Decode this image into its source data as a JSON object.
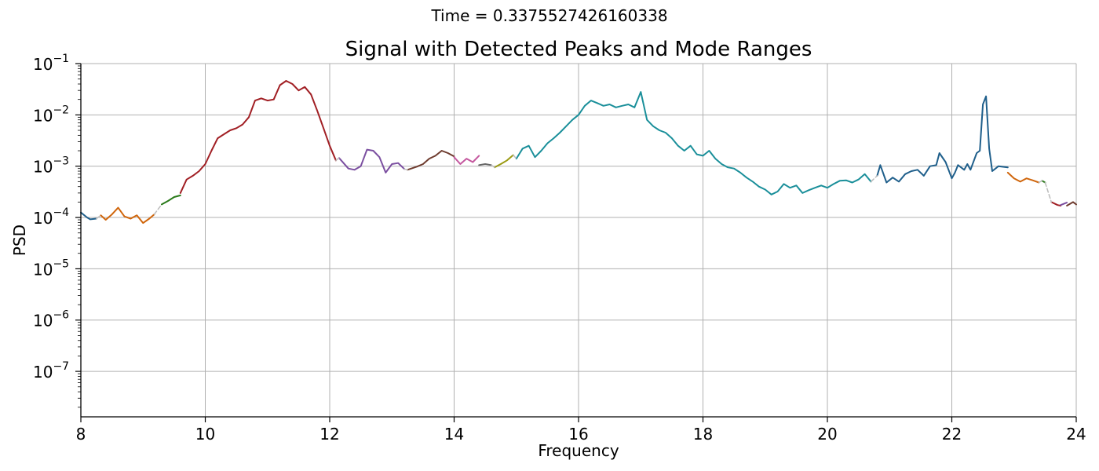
{
  "figure": {
    "suptitle": "Time = 0.3375527426160338"
  },
  "chart_data": {
    "type": "line",
    "title": "Signal with Detected Peaks and Mode Ranges",
    "xlabel": "Frequency",
    "ylabel": "PSD",
    "xlim": [
      8,
      24
    ],
    "ylim": [
      1.3e-08,
      0.1
    ],
    "yscale": "log",
    "grid": true,
    "x_ticks": [
      "8",
      "10",
      "12",
      "14",
      "16",
      "18",
      "20",
      "22",
      "24"
    ],
    "x_tick_values": [
      8,
      10,
      12,
      14,
      16,
      18,
      20,
      22,
      24
    ],
    "y_tick_values": [
      1e-07,
      1e-06,
      1e-05,
      0.0001,
      0.001,
      0.01,
      0.1
    ],
    "y_ticks": [
      {
        "base": "10",
        "exp": "−7"
      },
      {
        "base": "10",
        "exp": "−6"
      },
      {
        "base": "10",
        "exp": "−5"
      },
      {
        "base": "10",
        "exp": "−4"
      },
      {
        "base": "10",
        "exp": "−3"
      },
      {
        "base": "10",
        "exp": "−2"
      },
      {
        "base": "10",
        "exp": "−1"
      }
    ],
    "series": [
      {
        "color": "#1f5f8b",
        "dashed": false,
        "x": [
          8.0,
          8.1,
          8.15,
          8.25
        ],
        "y": [
          0.000125,
          0.0001,
          9.2e-05,
          9.5e-05
        ]
      },
      {
        "color": "#d0660c",
        "dashed": false,
        "x": [
          8.32,
          8.4,
          8.5,
          8.6,
          8.7,
          8.8,
          8.9,
          9.0,
          9.1,
          9.18
        ],
        "y": [
          0.00011,
          9e-05,
          0.000115,
          0.000155,
          0.000105,
          9.5e-05,
          0.00011,
          7.8e-05,
          9.5e-05,
          0.000115
        ]
      },
      {
        "color": "#2a7a1a",
        "dashed": false,
        "x": [
          9.3,
          9.4,
          9.5,
          9.6
        ],
        "y": [
          0.00018,
          0.00021,
          0.00025,
          0.00027
        ]
      },
      {
        "color": "#a11f24",
        "dashed": false,
        "x": [
          9.6,
          9.7,
          9.8,
          9.9,
          10.0,
          10.1,
          10.2,
          10.3,
          10.4,
          10.5,
          10.6,
          10.7,
          10.8,
          10.9,
          11.0,
          11.1,
          11.2,
          11.3,
          11.4,
          11.5,
          11.6,
          11.7,
          11.8,
          11.9,
          12.0,
          12.1
        ],
        "y": [
          0.0003,
          0.00055,
          0.00065,
          0.0008,
          0.0011,
          0.002,
          0.0035,
          0.0042,
          0.005,
          0.0055,
          0.0065,
          0.009,
          0.019,
          0.021,
          0.019,
          0.02,
          0.038,
          0.046,
          0.04,
          0.03,
          0.035,
          0.025,
          0.012,
          0.0055,
          0.0025,
          0.0013
        ]
      },
      {
        "color": "#7b4fa0",
        "dashed": false,
        "x": [
          12.15,
          12.3,
          12.4,
          12.5,
          12.6,
          12.7,
          12.8,
          12.9,
          13.0,
          13.1,
          13.2
        ],
        "y": [
          0.00145,
          0.0009,
          0.00085,
          0.001,
          0.0021,
          0.002,
          0.0015,
          0.00075,
          0.0011,
          0.00115,
          0.00088
        ]
      },
      {
        "color": "#6e3b2e",
        "dashed": false,
        "x": [
          13.25,
          13.4,
          13.5,
          13.6,
          13.7,
          13.8,
          13.9,
          14.0
        ],
        "y": [
          0.00085,
          0.00098,
          0.0011,
          0.0014,
          0.0016,
          0.002,
          0.0018,
          0.00155
        ]
      },
      {
        "color": "#c4579e",
        "dashed": false,
        "x": [
          14.0,
          14.1,
          14.2,
          14.3,
          14.4
        ],
        "y": [
          0.0015,
          0.0011,
          0.0014,
          0.0012,
          0.0016
        ]
      },
      {
        "color": "#666666",
        "dashed": false,
        "x": [
          14.4,
          14.5,
          14.6
        ],
        "y": [
          0.00105,
          0.0011,
          0.00105
        ]
      },
      {
        "color": "#9a9a12",
        "dashed": false,
        "x": [
          14.65,
          14.75,
          14.85,
          14.95
        ],
        "y": [
          0.00095,
          0.0011,
          0.0013,
          0.00165
        ]
      },
      {
        "color": "#1a8f9a",
        "dashed": false,
        "x": [
          15.0,
          15.1,
          15.2,
          15.3,
          15.4,
          15.5,
          15.6,
          15.7,
          15.8,
          15.9,
          16.0,
          16.1,
          16.2,
          16.3,
          16.4,
          16.5,
          16.6,
          16.7,
          16.8,
          16.9,
          17.0,
          17.1,
          17.2,
          17.3,
          17.4,
          17.5,
          17.6,
          17.7,
          17.8,
          17.9,
          18.0,
          18.1,
          18.2,
          18.3,
          18.4,
          18.5,
          18.6,
          18.7,
          18.8,
          18.9,
          19.0,
          19.1,
          19.2,
          19.3,
          19.4,
          19.5,
          19.6,
          19.7,
          19.8,
          19.9,
          20.0,
          20.1,
          20.2,
          20.3,
          20.4,
          20.5,
          20.6,
          20.7
        ],
        "y": [
          0.0014,
          0.0022,
          0.0025,
          0.0015,
          0.002,
          0.0028,
          0.0035,
          0.0045,
          0.006,
          0.008,
          0.01,
          0.015,
          0.019,
          0.017,
          0.015,
          0.016,
          0.014,
          0.015,
          0.016,
          0.014,
          0.028,
          0.008,
          0.006,
          0.005,
          0.0045,
          0.0035,
          0.0025,
          0.002,
          0.0025,
          0.0017,
          0.0016,
          0.002,
          0.0014,
          0.0011,
          0.00095,
          0.0009,
          0.00075,
          0.0006,
          0.0005,
          0.0004,
          0.00035,
          0.00028,
          0.00032,
          0.00045,
          0.00038,
          0.00042,
          0.0003,
          0.00034,
          0.00038,
          0.00042,
          0.00038,
          0.00045,
          0.00052,
          0.00053,
          0.00048,
          0.00055,
          0.0007,
          0.0005
        ]
      },
      {
        "color": "#1f5f8b",
        "dashed": false,
        "x": [
          20.8,
          20.85,
          20.95,
          21.05,
          21.15,
          21.25,
          21.35,
          21.45,
          21.55,
          21.65,
          21.75,
          21.8,
          21.9,
          22.0,
          22.05,
          22.1,
          22.2,
          22.25,
          22.3,
          22.4,
          22.45,
          22.5,
          22.55,
          22.6,
          22.65,
          22.75,
          22.9
        ],
        "y": [
          0.00065,
          0.00105,
          0.00048,
          0.0006,
          0.0005,
          0.0007,
          0.0008,
          0.00085,
          0.00065,
          0.001,
          0.00105,
          0.0018,
          0.0012,
          0.00058,
          0.00075,
          0.00105,
          0.00085,
          0.0011,
          0.00085,
          0.0018,
          0.002,
          0.016,
          0.023,
          0.0022,
          0.0008,
          0.001,
          0.00095
        ]
      },
      {
        "color": "#d0660c",
        "dashed": false,
        "x": [
          22.9,
          23.0,
          23.1,
          23.2,
          23.3,
          23.4
        ],
        "y": [
          0.00075,
          0.00058,
          0.0005,
          0.00058,
          0.00053,
          0.00048
        ]
      },
      {
        "color": "#2a7a1a",
        "dashed": false,
        "x": [
          23.45,
          23.5
        ],
        "y": [
          0.00052,
          0.00048
        ]
      },
      {
        "color": "#a11f24",
        "dashed": false,
        "x": [
          23.6,
          23.7,
          23.75
        ],
        "y": [
          0.0002,
          0.000175,
          0.00017
        ]
      },
      {
        "color": "#7b4fa0",
        "dashed": false,
        "x": [
          23.75,
          23.85
        ],
        "y": [
          0.000175,
          0.000195
        ]
      },
      {
        "color": "#6e3b2e",
        "dashed": false,
        "x": [
          23.85,
          23.95,
          24.0
        ],
        "y": [
          0.00017,
          0.0002,
          0.00018
        ]
      },
      {
        "color": "#bbbbbb",
        "dashed": true,
        "x": [
          8.25,
          8.32
        ],
        "y": [
          9.5e-05,
          0.00011
        ]
      },
      {
        "color": "#bbbbbb",
        "dashed": true,
        "x": [
          9.18,
          9.3
        ],
        "y": [
          0.000115,
          0.00018
        ]
      },
      {
        "color": "#bbbbbb",
        "dashed": true,
        "x": [
          12.1,
          12.15
        ],
        "y": [
          0.0013,
          0.00145
        ]
      },
      {
        "color": "#bbbbbb",
        "dashed": true,
        "x": [
          13.2,
          13.25
        ],
        "y": [
          0.00088,
          0.00085
        ]
      },
      {
        "color": "#bbbbbb",
        "dashed": true,
        "x": [
          14.6,
          14.65
        ],
        "y": [
          0.00105,
          0.00095
        ]
      },
      {
        "color": "#bbbbbb",
        "dashed": true,
        "x": [
          14.95,
          15.0
        ],
        "y": [
          0.00165,
          0.0014
        ]
      },
      {
        "color": "#bbbbbb",
        "dashed": true,
        "x": [
          20.7,
          20.8
        ],
        "y": [
          0.0005,
          0.00065
        ]
      },
      {
        "color": "#bbbbbb",
        "dashed": true,
        "x": [
          23.4,
          23.45
        ],
        "y": [
          0.00048,
          0.00052
        ]
      },
      {
        "color": "#bbbbbb",
        "dashed": true,
        "x": [
          23.5,
          23.6
        ],
        "y": [
          0.00048,
          0.0002
        ]
      }
    ]
  }
}
